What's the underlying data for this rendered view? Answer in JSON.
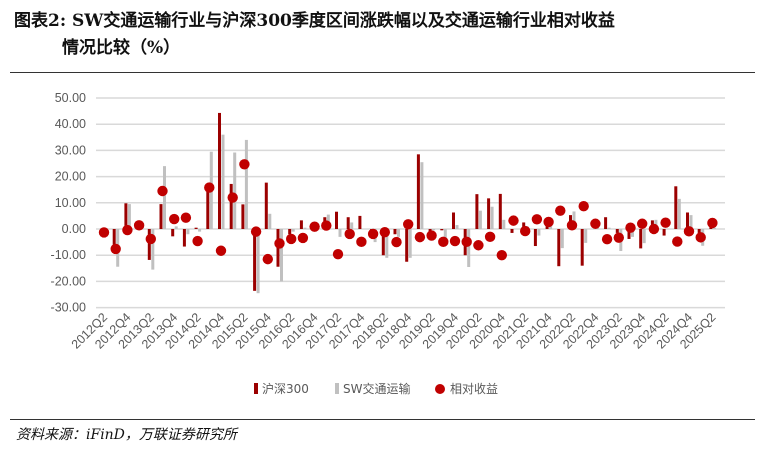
{
  "title_line1": "图表2:  SW交通运输行业与沪深300季度区间涨跌幅以及交通运输行业相对收益",
  "title_line2": "情况比较（%）",
  "source": "资料来源：iFinD，万联证券研究所",
  "chart_data": {
    "type": "bar",
    "title": "",
    "xlabel": "",
    "ylabel": "",
    "ylim": [
      -30,
      50
    ],
    "yticks": [
      "50.00",
      "40.00",
      "30.00",
      "20.00",
      "10.00",
      "0.00",
      "-10.00",
      "-20.00",
      "-30.00"
    ],
    "ytick_values": [
      50,
      40,
      30,
      20,
      10,
      0,
      -10,
      -20,
      -30
    ],
    "grid": true,
    "legend_position": "bottom",
    "colors": {
      "hs300": "#9b0000",
      "sw": "#c0c0c0",
      "relative": "#c00000",
      "grid": "#d9d9d9"
    },
    "categories": [
      "2012Q2",
      "2012Q3",
      "2012Q4",
      "2013Q1",
      "2013Q2",
      "2013Q3",
      "2013Q4",
      "2014Q1",
      "2014Q2",
      "2014Q3",
      "2014Q4",
      "2015Q1",
      "2015Q2",
      "2015Q3",
      "2015Q4",
      "2016Q1",
      "2016Q2",
      "2016Q3",
      "2016Q4",
      "2017Q1",
      "2017Q2",
      "2017Q3",
      "2017Q4",
      "2018Q1",
      "2018Q2",
      "2018Q3",
      "2018Q4",
      "2019Q1",
      "2019Q2",
      "2019Q3",
      "2019Q4",
      "2020Q1",
      "2020Q2",
      "2020Q3",
      "2020Q4",
      "2021Q1",
      "2021Q2",
      "2021Q3",
      "2021Q4",
      "2022Q1",
      "2022Q2",
      "2022Q3",
      "2022Q4",
      "2023Q1",
      "2023Q2",
      "2023Q3",
      "2023Q4",
      "2024Q1",
      "2024Q2",
      "2024Q3",
      "2024Q4",
      "2025Q1",
      "2025Q2"
    ],
    "xtick_labels": [
      "2012Q2",
      "2012Q4",
      "2013Q2",
      "2013Q4",
      "2014Q2",
      "2014Q4",
      "2015Q2",
      "2015Q4",
      "2016Q2",
      "2016Q4",
      "2017Q2",
      "2017Q4",
      "2018Q2",
      "2018Q4",
      "2019Q2",
      "2019Q4",
      "2020Q2",
      "2020Q4",
      "2021Q2",
      "2021Q4",
      "2022Q2",
      "2022Q4",
      "2023Q2",
      "2023Q4",
      "2024Q2",
      "2024Q4",
      "2025Q2"
    ],
    "series": [
      {
        "name": "沪深300",
        "type": "bar",
        "values": [
          0,
          -6,
          9.8,
          0,
          -11.8,
          9.5,
          -2.8,
          -6.7,
          0.5,
          15.5,
          44.3,
          17.2,
          9.4,
          -23.6,
          17.7,
          -14.4,
          -2,
          3.3,
          0.5,
          4.5,
          6.6,
          4.5,
          5,
          -0.5,
          -10,
          -2,
          -12.5,
          28.5,
          -1,
          -0.5,
          6.3,
          -10,
          13.3,
          11.7,
          13.4,
          -1.5,
          2.5,
          -6.5,
          1.5,
          -14.2,
          5.3,
          -14,
          0,
          4.5,
          -1.5,
          -3.8,
          -7.4,
          3.3,
          -2.5,
          16.3,
          6.3,
          -1.5,
          1.5
        ]
      },
      {
        "name": "SW交通运输",
        "type": "bar",
        "values": [
          0,
          -14.4,
          9.5,
          0,
          -15.5,
          24,
          1,
          -2,
          -1,
          29.5,
          36,
          29.2,
          34,
          -24.5,
          5.8,
          -20,
          -1,
          0.5,
          1,
          5.5,
          -3,
          2.5,
          0,
          -5,
          -11,
          -3,
          -11,
          25.5,
          -0.5,
          -5,
          1.5,
          -14.5,
          7,
          8.5,
          3.5,
          0,
          1,
          -2.5,
          1.5,
          -7.3,
          6.7,
          -5.3,
          0.5,
          0.5,
          -8.4,
          -3,
          -5.4,
          3.5,
          0,
          11.5,
          5.3,
          -6.4,
          0.5
        ]
      },
      {
        "name": "相对收益",
        "type": "scatter",
        "values": [
          -1.3,
          -7.6,
          -0.4,
          1.4,
          -3.8,
          14.5,
          3.8,
          4.3,
          -4.6,
          15.8,
          -8.3,
          12,
          24.7,
          -1,
          -11.5,
          -5.5,
          -3.8,
          -3.4,
          0.9,
          1.3,
          -9.6,
          -1.9,
          -4.9,
          -1.9,
          -1.2,
          -5,
          1.8,
          -3.1,
          -2.5,
          -4.9,
          -4.6,
          -4.9,
          -6.2,
          -3,
          -10,
          3.2,
          -0.8,
          3.7,
          2.7,
          7,
          1.4,
          8.7,
          2,
          -3.9,
          -3.3,
          0.5,
          2,
          0,
          2.4,
          -4.8,
          -0.9,
          -3.2,
          2.3
        ]
      }
    ]
  }
}
